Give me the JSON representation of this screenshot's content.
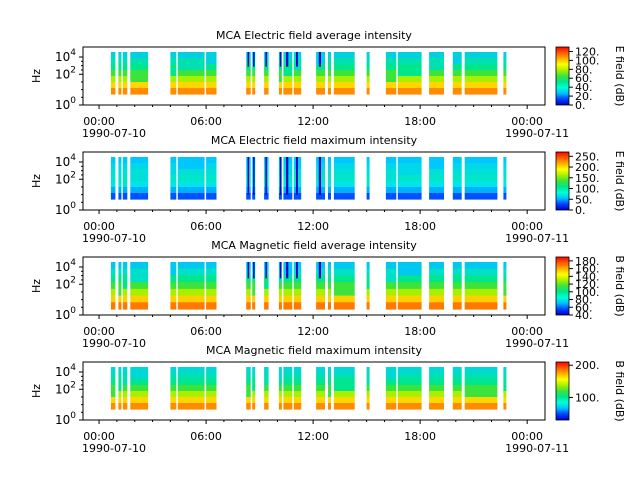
{
  "chart_data": [
    {
      "type": "heatmap",
      "title": "MCA  Electric field average intensity",
      "ylabel": "Hz",
      "yscale": "log",
      "yticks": [
        "10^0",
        "10^2",
        "10^4"
      ],
      "xticks": [
        "00:00",
        "06:00",
        "12:00",
        "18:00",
        "00:00"
      ],
      "xtick_dates": [
        "1990-07-10",
        "1990-07-11"
      ],
      "colorbar": {
        "label": "E field (dB)",
        "min": 0,
        "max": 130,
        "ticks": [
          "0.",
          "20.",
          "40.",
          "60.",
          "80.",
          "100.",
          "120."
        ]
      }
    },
    {
      "type": "heatmap",
      "title": "MCA  Electric field maximum intensity",
      "ylabel": "Hz",
      "yscale": "log",
      "yticks": [
        "10^0",
        "10^2",
        "10^4"
      ],
      "xticks": [
        "00:00",
        "06:00",
        "12:00",
        "18:00",
        "00:00"
      ],
      "xtick_dates": [
        "1990-07-10",
        "1990-07-11"
      ],
      "colorbar": {
        "label": "E field (dB)",
        "min": 0,
        "max": 270,
        "ticks": [
          "0.",
          "50.",
          "100.",
          "150.",
          "200.",
          "250."
        ]
      }
    },
    {
      "type": "heatmap",
      "title": "MCA  Magnetic field average intensity",
      "ylabel": "Hz",
      "yscale": "log",
      "yticks": [
        "10^0",
        "10^2",
        "10^4"
      ],
      "xticks": [
        "00:00",
        "06:00",
        "12:00",
        "18:00",
        "00:00"
      ],
      "xtick_dates": [
        "1990-07-10",
        "1990-07-11"
      ],
      "colorbar": {
        "label": "B field (dB)",
        "min": 40,
        "max": 190,
        "ticks": [
          "40.",
          "60.",
          "80.",
          "100.",
          "120.",
          "140.",
          "160.",
          "180."
        ]
      }
    },
    {
      "type": "heatmap",
      "title": "MCA  Magnetic field maximum intensity",
      "ylabel": "Hz",
      "yscale": "log",
      "yticks": [
        "10^0",
        "10^2",
        "10^4"
      ],
      "xticks": [
        "00:00",
        "06:00",
        "12:00",
        "18:00",
        "00:00"
      ],
      "xtick_dates": [
        "1990-07-10",
        "1990-07-11"
      ],
      "colorbar": {
        "label": "B field (dB)",
        "min": 30,
        "max": 210,
        "ticks": [
          "100.",
          "200."
        ]
      }
    }
  ],
  "data_intervals": [
    [
      "00:40",
      "00:55"
    ],
    [
      "01:05",
      "01:15"
    ],
    [
      "01:20",
      "01:35"
    ],
    [
      "01:45",
      "02:45"
    ],
    [
      "04:00",
      "04:20"
    ],
    [
      "04:25",
      "05:55"
    ],
    [
      "06:00",
      "06:35"
    ],
    [
      "08:15",
      "08:30"
    ],
    [
      "08:35",
      "08:45"
    ],
    [
      "09:15",
      "09:30"
    ],
    [
      "10:05",
      "10:15"
    ],
    [
      "10:20",
      "10:50"
    ],
    [
      "10:55",
      "11:20"
    ],
    [
      "12:10",
      "12:40"
    ],
    [
      "12:50",
      "13:00"
    ],
    [
      "13:10",
      "14:20"
    ],
    [
      "15:00",
      "15:10"
    ],
    [
      "16:05",
      "16:40"
    ],
    [
      "16:45",
      "18:05"
    ],
    [
      "18:30",
      "19:20"
    ],
    [
      "19:50",
      "20:20"
    ],
    [
      "20:30",
      "22:20"
    ],
    [
      "22:40",
      "22:50"
    ]
  ],
  "colormap": [
    "#0000c8",
    "#0040ff",
    "#00bfff",
    "#00ffd9",
    "#00e68c",
    "#3de33d",
    "#a8f000",
    "#ffff00",
    "#ffb000",
    "#ff5a00",
    "#ff0000"
  ]
}
